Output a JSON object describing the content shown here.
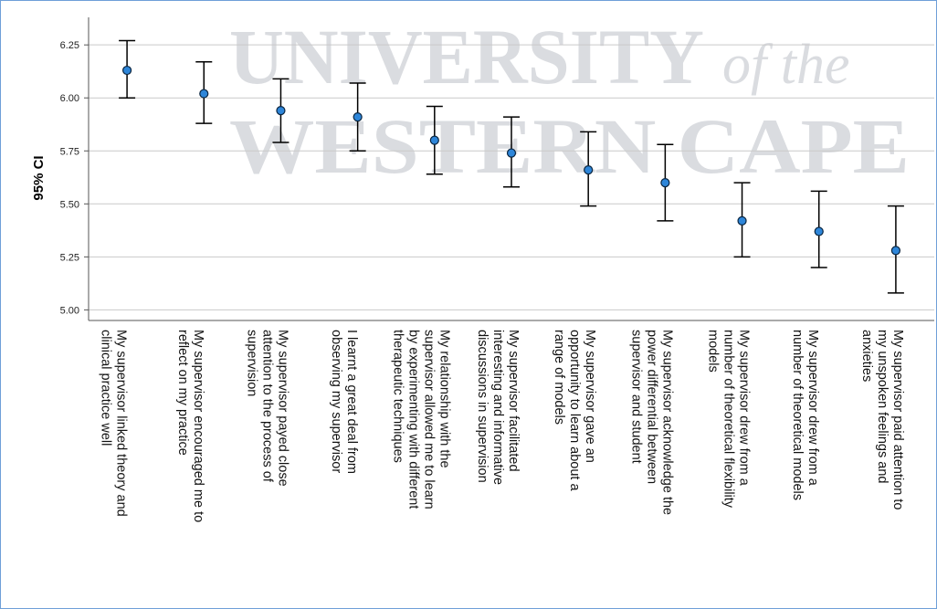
{
  "watermark": {
    "line1": "UNIVERSITY",
    "line1_suffix": "of the",
    "line2": "WESTERN CAPE"
  },
  "chart_data": {
    "type": "errorbar",
    "ylabel": "95% CI",
    "ylim": [
      4.95,
      6.38
    ],
    "yticks": [
      "5.00",
      "5.25",
      "5.50",
      "5.75",
      "6.00",
      "6.25"
    ],
    "grid": true,
    "marker_color": "#2e86d9",
    "errorbar_color": "#000000",
    "categories": [
      [
        "My supervisor linked theory and",
        "clinical practice well"
      ],
      [
        "My supervisor encouraged me to",
        "reflect on my practice"
      ],
      [
        "My supervisor payed close",
        "attention to the process of",
        "supervision"
      ],
      [
        "I learnt a great deal from",
        "observing my supervisor"
      ],
      [
        "My relationship with the",
        "supervisor allowed me to learn",
        "by experimenting with different",
        "therapeutic techniques"
      ],
      [
        "My supervisor facilitated",
        "interesting and informative",
        "discussions in supervision"
      ],
      [
        "My supervisor gave an",
        "opportunity to learn about a",
        "range of models"
      ],
      [
        "My supervisor acknowledge the",
        "power differential between",
        "supervisor and student"
      ],
      [
        "My supervisor drew from a",
        "number of theoretical flexibility",
        "models"
      ],
      [
        "My supervisor drew from a",
        "number of theoretical models"
      ],
      [
        "My supervisor paid attention to",
        "my unspoken feelings and",
        "anxieties"
      ]
    ],
    "mean": [
      6.13,
      6.02,
      5.94,
      5.91,
      5.8,
      5.74,
      5.66,
      5.6,
      5.42,
      5.37,
      5.28
    ],
    "lower": [
      6.0,
      5.88,
      5.79,
      5.75,
      5.64,
      5.58,
      5.49,
      5.42,
      5.25,
      5.2,
      5.08
    ],
    "upper": [
      6.27,
      6.17,
      6.09,
      6.07,
      5.96,
      5.91,
      5.84,
      5.78,
      5.6,
      5.56,
      5.49
    ]
  }
}
